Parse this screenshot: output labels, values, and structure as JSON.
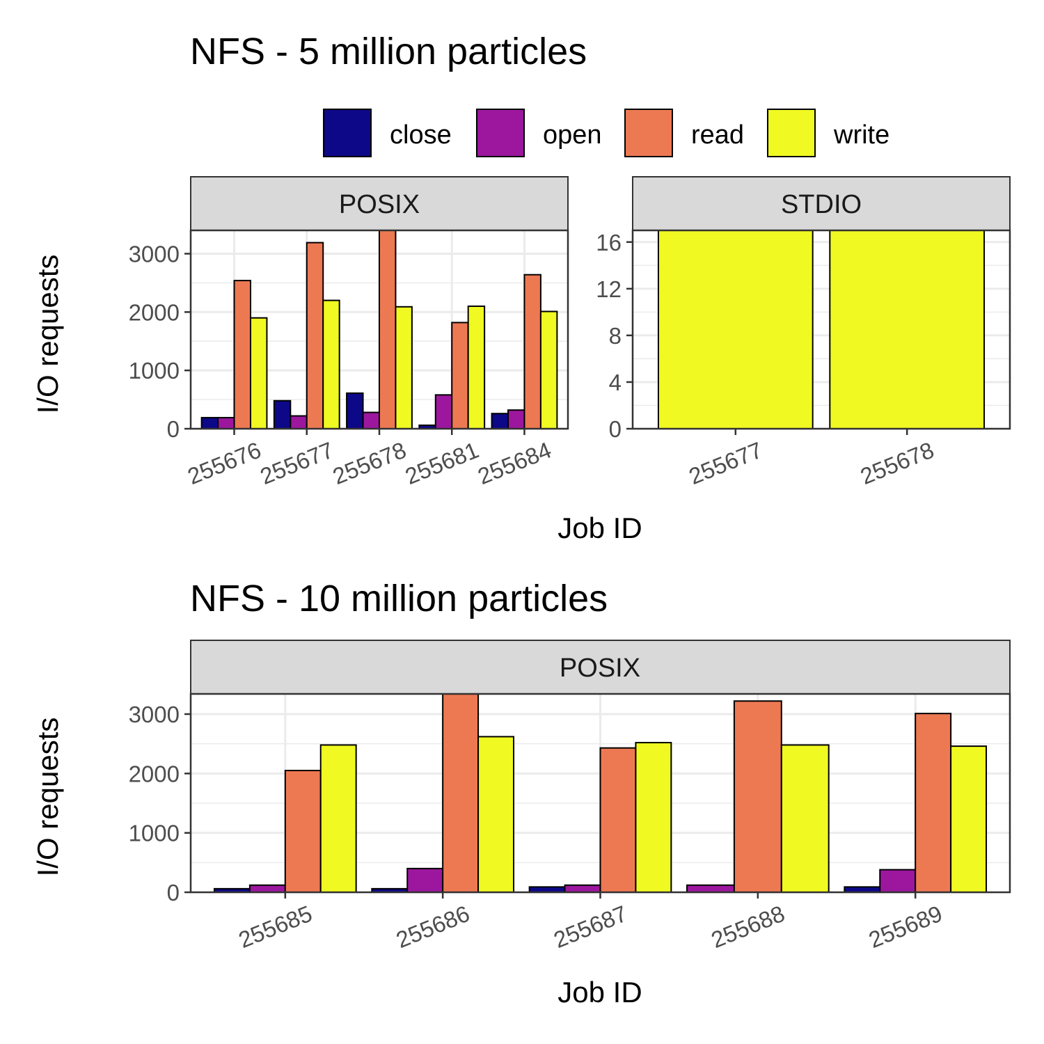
{
  "colors": {
    "close": "#0d0887",
    "open": "#9c179e",
    "read": "#ed7953",
    "write": "#f0f921",
    "strip_bg": "#d9d9d9",
    "grid": "#ebebeb",
    "panel_border": "#333333"
  },
  "legend": {
    "placement": "top",
    "items": [
      "close",
      "open",
      "read",
      "write"
    ]
  },
  "chart_data": [
    {
      "type": "bar",
      "title": "NFS - 5 million particles",
      "xlabel": "Job ID",
      "ylabel": "I/O requests",
      "grid": true,
      "series_names": [
        "close",
        "open",
        "read",
        "write"
      ],
      "facets": [
        {
          "label": "POSIX",
          "categories": [
            "255676",
            "255677",
            "255678",
            "255681",
            "255684"
          ],
          "ylim": [
            0,
            3400
          ],
          "yticks": [
            0,
            1000,
            2000,
            3000
          ],
          "series": [
            {
              "name": "close",
              "values": [
                190,
                480,
                610,
                60,
                260
              ]
            },
            {
              "name": "open",
              "values": [
                190,
                220,
                280,
                580,
                320
              ]
            },
            {
              "name": "read",
              "values": [
                2540,
                3190,
                3450,
                1820,
                2640
              ]
            },
            {
              "name": "write",
              "values": [
                1900,
                2200,
                2090,
                2100,
                2010
              ]
            }
          ]
        },
        {
          "label": "STDIO",
          "categories": [
            "255677",
            "255678"
          ],
          "ylim": [
            0,
            17
          ],
          "yticks": [
            0,
            4,
            8,
            12,
            16
          ],
          "series": [
            {
              "name": "write",
              "values": [
                17,
                17
              ]
            }
          ]
        }
      ]
    },
    {
      "type": "bar",
      "title": "NFS - 10 million particles",
      "xlabel": "Job ID",
      "ylabel": "I/O requests",
      "grid": true,
      "series_names": [
        "close",
        "open",
        "read",
        "write"
      ],
      "facets": [
        {
          "label": "POSIX",
          "categories": [
            "255685",
            "255686",
            "255687",
            "255688",
            "255689"
          ],
          "ylim": [
            0,
            3340
          ],
          "yticks": [
            0,
            1000,
            2000,
            3000
          ],
          "series": [
            {
              "name": "close",
              "values": [
                60,
                60,
                90,
                null,
                90
              ]
            },
            {
              "name": "open",
              "values": [
                120,
                400,
                120,
                120,
                380
              ]
            },
            {
              "name": "read",
              "values": [
                2050,
                3400,
                2430,
                3220,
                3010
              ]
            },
            {
              "name": "write",
              "values": [
                2480,
                2620,
                2520,
                2480,
                2460
              ]
            }
          ]
        }
      ]
    }
  ]
}
